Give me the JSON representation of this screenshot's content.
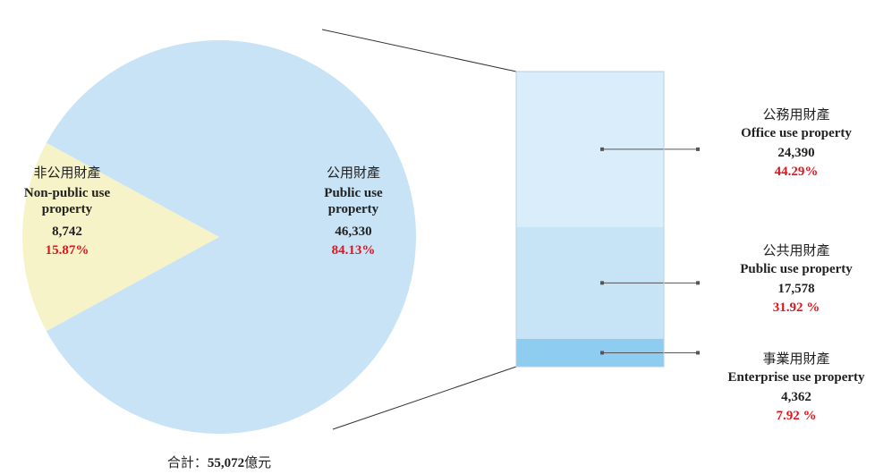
{
  "chart_data": {
    "type": "pie",
    "categories": [
      "非公用財產",
      "公用財產"
    ],
    "categories_en": [
      "Non-public use property",
      "Public use property"
    ],
    "values": [
      8742,
      46330
    ],
    "value_labels": [
      "8,742",
      "46,330"
    ],
    "percents": [
      15.87,
      84.13
    ],
    "percent_labels": [
      "15.87%",
      "84.13%"
    ],
    "colors": [
      "#f7f3c8",
      "#c9e3f6"
    ],
    "breakdown": {
      "categories": [
        "公務用財產",
        "公共用財產",
        "事業用財產"
      ],
      "categories_en": [
        "Office use property",
        "Public use property",
        "Enterprise use property"
      ],
      "values": [
        24390,
        17578,
        4362
      ],
      "value_labels": [
        "24,390",
        "17,578",
        "4,362"
      ],
      "percents": [
        44.29,
        31.92,
        7.92
      ],
      "percent_labels": [
        "44.29%",
        "31.92 %",
        "7.92 %"
      ],
      "colors": [
        "#daedfa",
        "#c7e3f6",
        "#8ecdf0"
      ]
    },
    "total_prefix": "合計：",
    "total": 55072,
    "total_label": "55,072",
    "total_unit": "億元"
  }
}
